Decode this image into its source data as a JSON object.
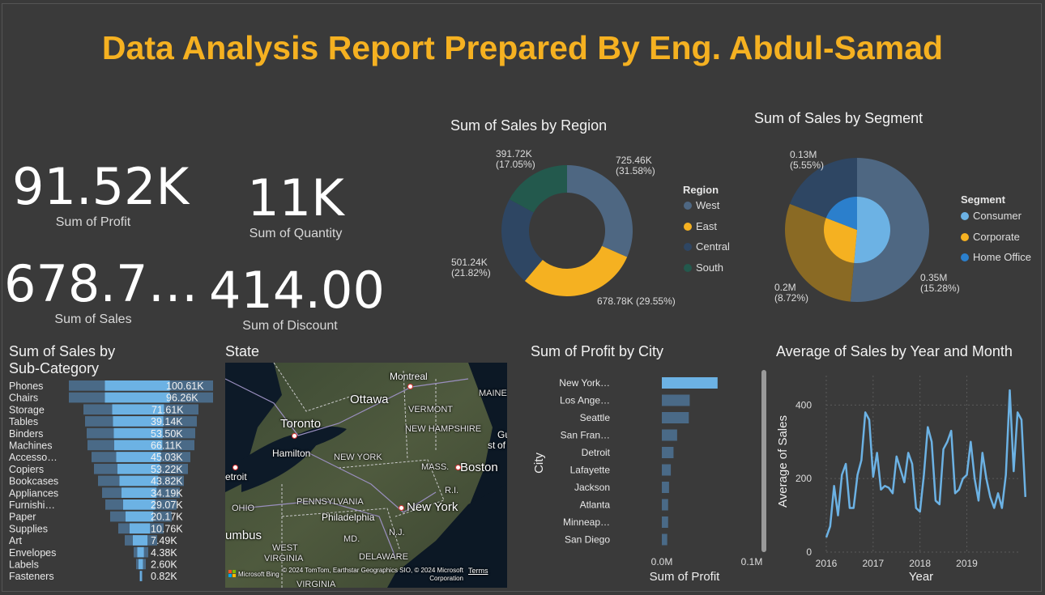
{
  "header": {
    "title": "Data Analysis Report Prepared By Eng. Abdul-Samad"
  },
  "kpis": [
    {
      "value": "91.52K",
      "label": "Sum of Profit"
    },
    {
      "value": "11K",
      "label": "Sum of Quantity"
    },
    {
      "value": "678.7…",
      "label": "Sum of Sales"
    },
    {
      "value": "414.00",
      "label": "Sum of Discount"
    }
  ],
  "colors": {
    "west": "#4e6782",
    "east": "#f5b121",
    "central": "#2e4663",
    "south": "#23594d",
    "consumer": "#6cb2e4",
    "corporate": "#f5b121",
    "home_office": "#2b7fcc",
    "bar_light": "#6cb2e4",
    "bar_dark": "#4a6a87",
    "title": "#f5b121"
  },
  "region_chart": {
    "title": "Sum of Sales by Region",
    "legend_title": "Region",
    "labels": [
      {
        "value": "725.46K",
        "pct": "(31.58%)"
      },
      {
        "value": "678.78K (29.55%)"
      },
      {
        "value": "501.24K",
        "pct": "(21.82%)"
      },
      {
        "value": "391.72K",
        "pct": "(17.05%)"
      }
    ]
  },
  "segment_chart": {
    "title": "Sum of Sales by Segment",
    "legend_title": "Segment",
    "labels": [
      {
        "value": "0.35M",
        "pct": "(15.28%)"
      },
      {
        "value": "0.2M",
        "pct": "(8.72%)"
      },
      {
        "value": "0.13M",
        "pct": "(5.55%)"
      }
    ]
  },
  "subcat_chart": {
    "title_line1": "Sum of Sales by",
    "title_line2": "Sub-Category"
  },
  "map": {
    "title": "State",
    "labels": [
      "Montreal",
      "Ottawa",
      "Toronto",
      "Hamilton",
      "VERMONT",
      "NEW HAMPSHIRE",
      "NEW YORK",
      "MASS.",
      "Boston",
      "MAINE",
      "etroit",
      "OHIO",
      "PENNSYLVANIA",
      "Philadelphia",
      "New York",
      "N.J.",
      "R.I.",
      "umbus",
      "MD.",
      "WEST",
      "VIRGINIA",
      "DELAWARE",
      "VIRGINIA",
      "Gu",
      "of M",
      "st"
    ],
    "attribution": "© 2024 TomTom, Earthstar Geographics SIO, © 2024 Microsoft Corporation",
    "terms": "Terms",
    "bing": "Microsoft Bing"
  },
  "city_chart": {
    "title": "Sum of Profit by City",
    "ylabel": "City"
  },
  "time_chart": {
    "title": "Average of Sales by Year and Month"
  },
  "chart_data": [
    {
      "type": "pie",
      "title": "Sum of Sales by Region",
      "categories": [
        "West",
        "East",
        "Central",
        "South"
      ],
      "values": [
        725.46,
        678.78,
        501.24,
        391.72
      ],
      "percent": [
        31.58,
        29.55,
        21.82,
        17.05
      ],
      "unit": "K",
      "legend": "right"
    },
    {
      "type": "pie",
      "title": "Sum of Sales by Segment",
      "categories": [
        "Consumer",
        "Corporate",
        "Home Office"
      ],
      "values": [
        0.35,
        0.2,
        0.13
      ],
      "percent": [
        15.28,
        8.72,
        5.55
      ],
      "unit": "M",
      "legend": "right"
    },
    {
      "type": "bar",
      "title": "Sum of Sales by Sub-Category",
      "categories": [
        "Phones",
        "Chairs",
        "Storage",
        "Tables",
        "Binders",
        "Machines",
        "Accesso…",
        "Copiers",
        "Bookcases",
        "Appliances",
        "Furnishi…",
        "Paper",
        "Supplies",
        "Art",
        "Envelopes",
        "Labels",
        "Fasteners"
      ],
      "values": [
        100.61,
        96.26,
        71.61,
        39.14,
        53.5,
        66.11,
        45.03,
        53.22,
        43.82,
        34.19,
        29.07,
        20.17,
        10.76,
        7.49,
        4.38,
        2.6,
        0.82
      ],
      "value_labels": [
        "100.61K",
        "96.26K",
        "71.61K",
        "39.14K",
        "53.50K",
        "66.11K",
        "45.03K",
        "53.22K",
        "43.82K",
        "34.19K",
        "29.07K",
        "20.17K",
        "10.76K",
        "7.49K",
        "4.38K",
        "2.60K",
        "0.82K"
      ],
      "funnel_widths": [
        178,
        178,
        142,
        138,
        134,
        132,
        122,
        116,
        106,
        96,
        88,
        76,
        56,
        40,
        18,
        12,
        4
      ]
    },
    {
      "type": "bar",
      "title": "Sum of Profit by City",
      "categories": [
        "New York…",
        "Los Ange…",
        "Seattle",
        "San Fran…",
        "Detroit",
        "Lafayette",
        "Jackson",
        "Atlanta",
        "Minneap…",
        "San Diego"
      ],
      "values": [
        0.062,
        0.031,
        0.03,
        0.017,
        0.013,
        0.01,
        0.008,
        0.007,
        0.007,
        0.006
      ],
      "xlabel": "Sum of Profit",
      "ylabel": "City",
      "xticks": [
        "0.0M",
        "0.1M"
      ],
      "xlim": [
        0,
        0.1
      ]
    },
    {
      "type": "line",
      "title": "Average of Sales by Year and Month",
      "xlabel": "Year",
      "ylabel": "Average of Sales",
      "xticks": [
        "2016",
        "2017",
        "2018",
        "2019"
      ],
      "yticks": [
        "0",
        "200",
        "400"
      ],
      "ylim": [
        0,
        480
      ],
      "x_start": 2016,
      "values": [
        40,
        70,
        180,
        100,
        210,
        240,
        120,
        120,
        210,
        250,
        380,
        360,
        205,
        270,
        170,
        180,
        175,
        160,
        260,
        225,
        190,
        270,
        240,
        120,
        110,
        210,
        340,
        300,
        140,
        130,
        280,
        300,
        330,
        160,
        170,
        200,
        210,
        300,
        200,
        140,
        270,
        200,
        150,
        120,
        160,
        120,
        210,
        440,
        220,
        380,
        360,
        150
      ]
    }
  ]
}
